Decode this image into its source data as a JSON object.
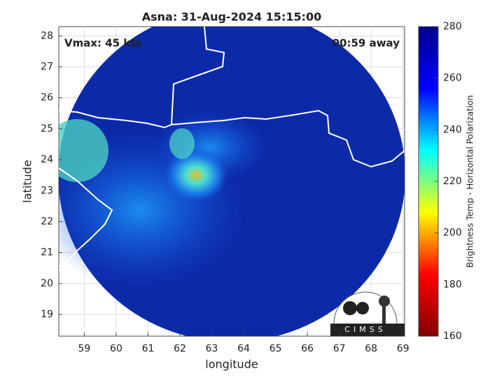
{
  "chart_data": {
    "type": "map",
    "title": "Asna: 31-Aug-2024 15:15:00",
    "annotations": [
      "Vmax: 45 kts",
      "00:59 away"
    ],
    "xlabel": "longitude",
    "ylabel": "latitude",
    "xlim": [
      58.2,
      69.05
    ],
    "ylim": [
      18.3,
      28.3
    ],
    "xticks": [
      59,
      60,
      61,
      62,
      63,
      64,
      65,
      66,
      67,
      68,
      69
    ],
    "yticks": [
      19,
      20,
      21,
      22,
      23,
      24,
      25,
      26,
      27,
      28
    ],
    "grid": true,
    "colorbar": {
      "label": "Brightness Temp - Horizontal Polarization",
      "colormap": "jet",
      "lim": [
        160,
        280
      ],
      "ticks": [
        160,
        180,
        200,
        220,
        240,
        260,
        280
      ]
    },
    "logo": "CIMSS"
  }
}
